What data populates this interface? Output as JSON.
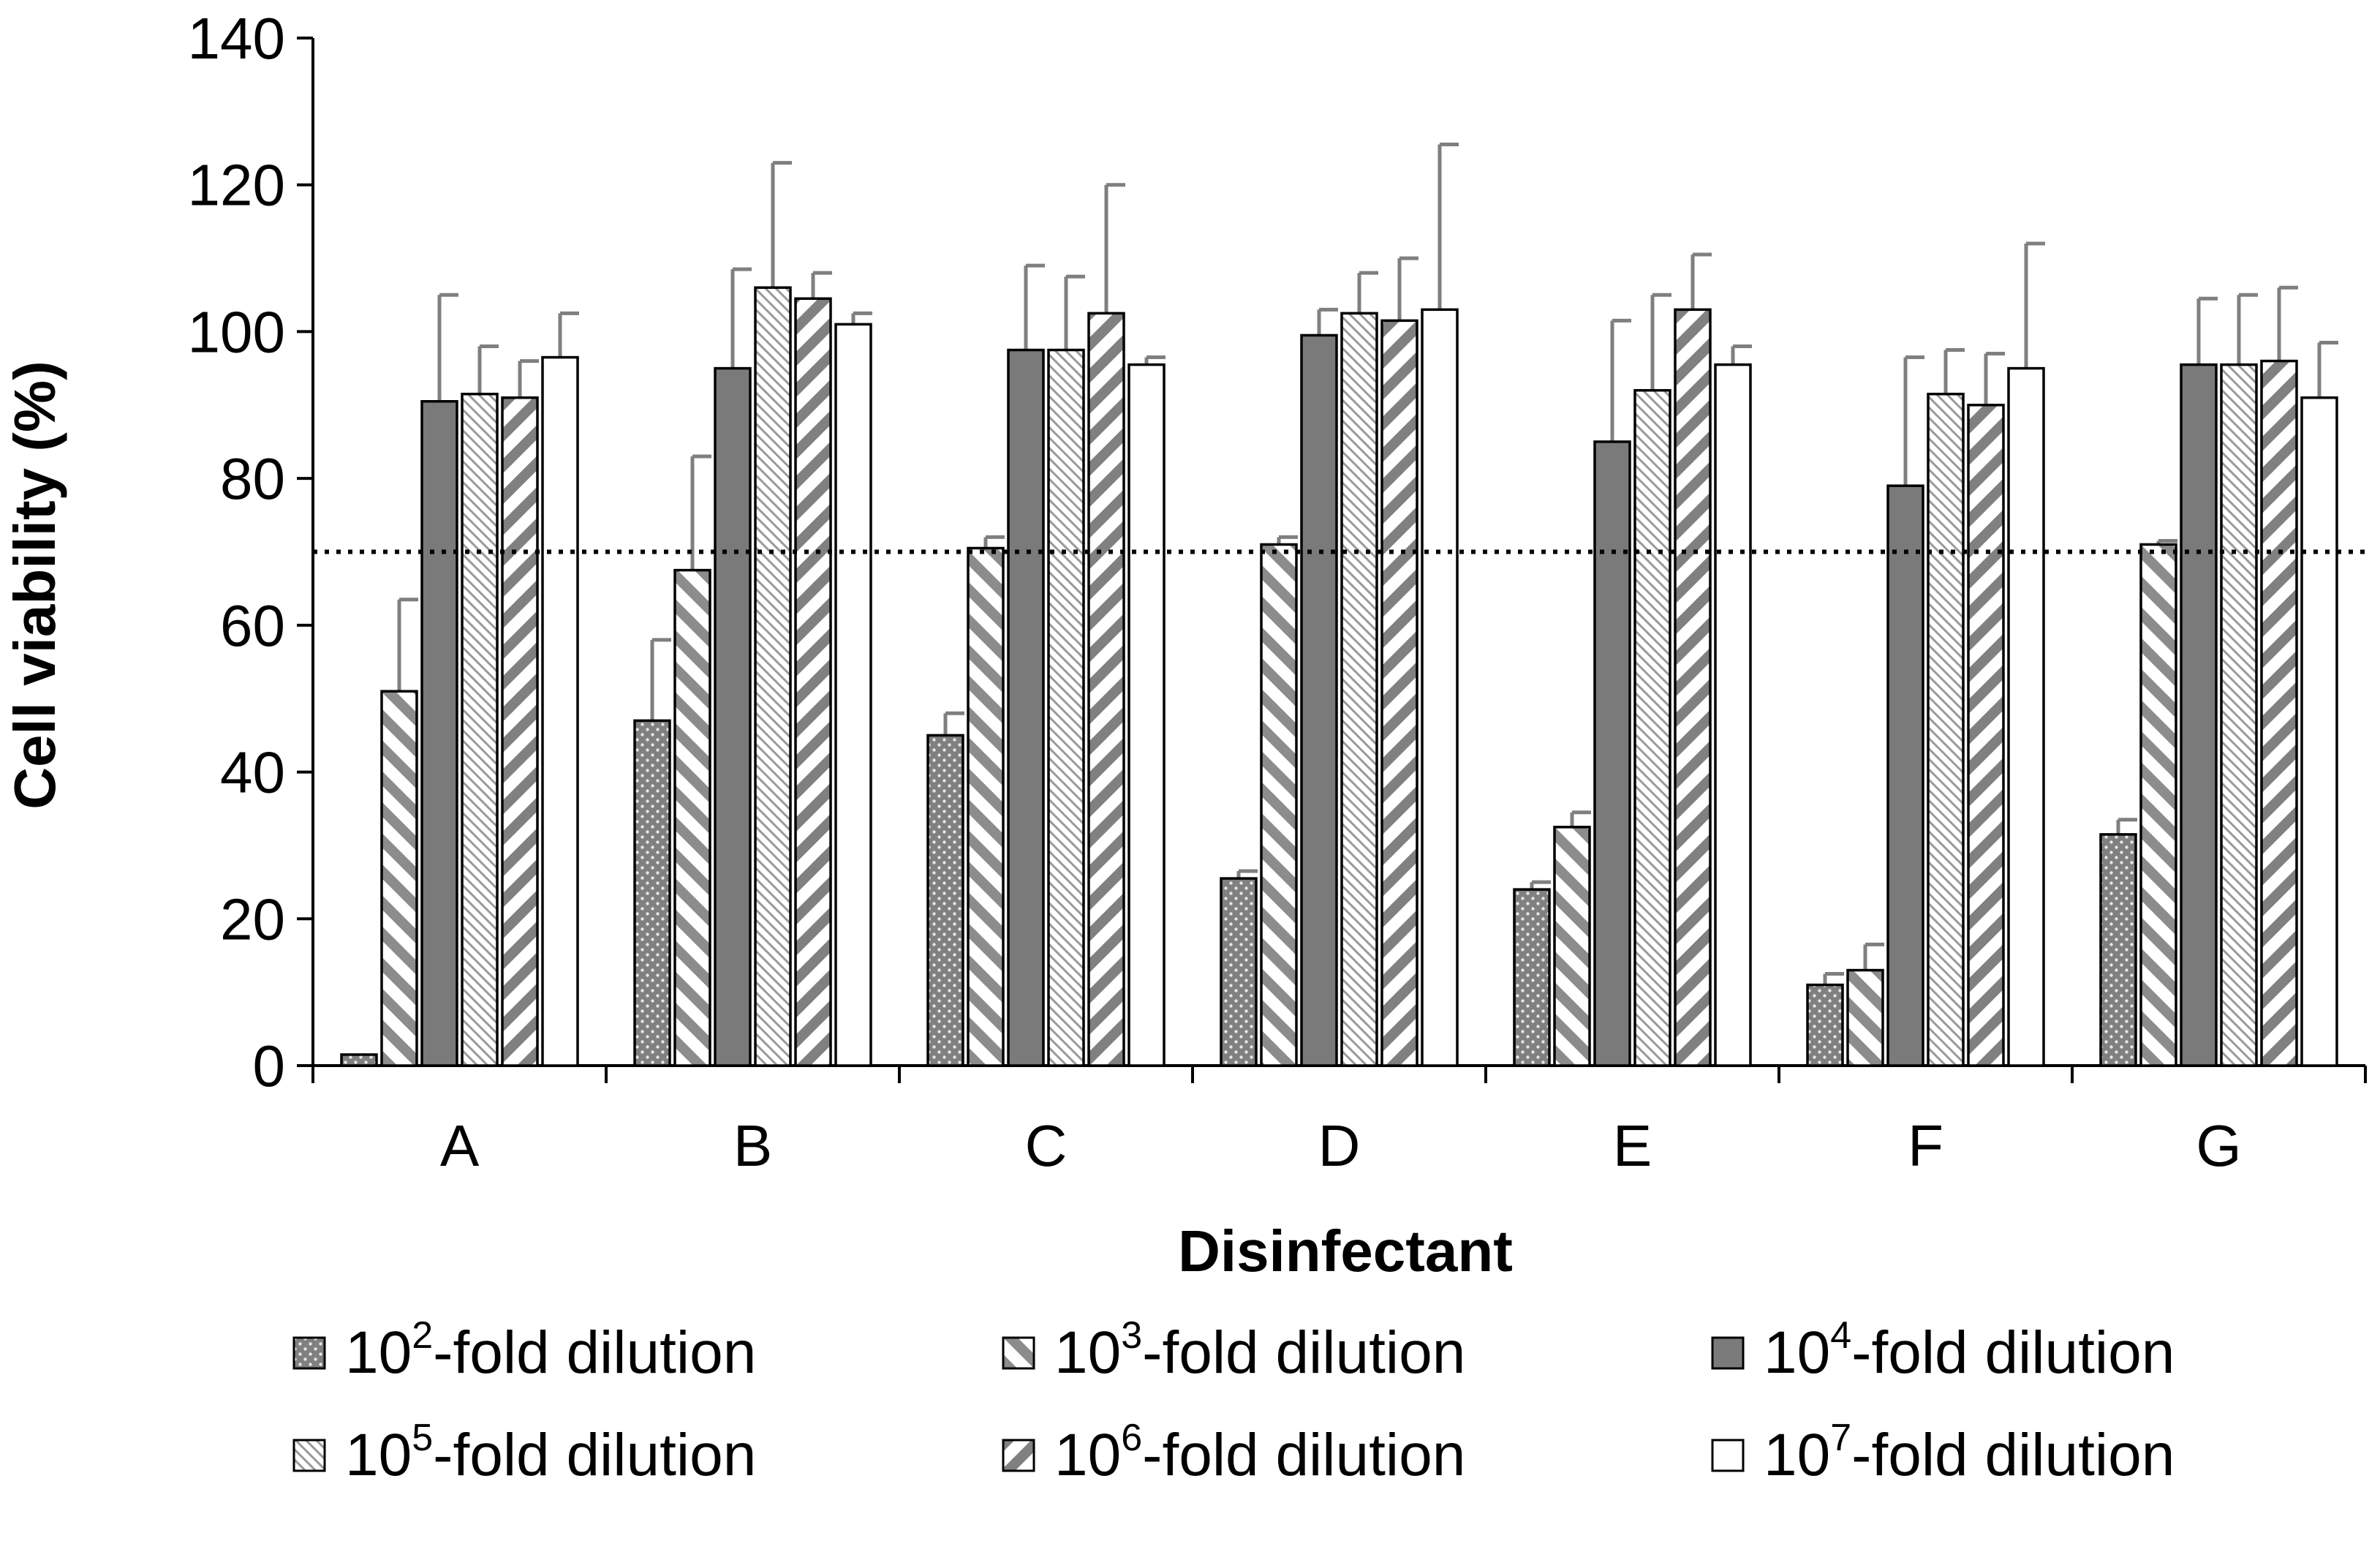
{
  "chart_data": {
    "type": "bar",
    "title": "",
    "xlabel": "Disinfectant",
    "ylabel": "Cell viability (%)",
    "ylim": [
      0,
      140
    ],
    "yticks": [
      0,
      20,
      40,
      60,
      80,
      100,
      120,
      140
    ],
    "reference_line": 70,
    "categories": [
      "A",
      "B",
      "C",
      "D",
      "E",
      "F",
      "G"
    ],
    "series": [
      {
        "name": "10²-fold dilution",
        "base": "10",
        "exp": "2",
        "suffix": "-fold dilution",
        "pattern": "dots",
        "values": [
          1.5,
          47,
          45,
          25.5,
          24,
          11,
          31.5
        ],
        "errors": [
          0,
          11,
          3,
          1,
          1,
          1.5,
          2
        ]
      },
      {
        "name": "10³-fold dilution",
        "base": "10",
        "exp": "3",
        "suffix": "-fold dilution",
        "pattern": "diag-right",
        "values": [
          51,
          67.5,
          70.5,
          71,
          32.5,
          13,
          71
        ],
        "errors": [
          12.5,
          15.5,
          1.5,
          1,
          2,
          3.5,
          0.5
        ]
      },
      {
        "name": "10⁴-fold dilution",
        "base": "10",
        "exp": "4",
        "suffix": "-fold dilution",
        "pattern": "solid",
        "values": [
          90.5,
          95,
          97.5,
          99.5,
          85,
          79,
          95.5
        ],
        "errors": [
          14.5,
          13.5,
          11.5,
          3.5,
          16.5,
          17.5,
          9
        ]
      },
      {
        "name": "10⁵-fold dilution",
        "base": "10",
        "exp": "5",
        "suffix": "-fold dilution",
        "pattern": "fine-diag",
        "values": [
          91.5,
          106,
          97.5,
          102.5,
          92,
          91.5,
          95.5
        ],
        "errors": [
          6.5,
          17,
          10,
          5.5,
          13,
          6,
          9.5
        ]
      },
      {
        "name": "10⁶-fold dilution",
        "base": "10",
        "exp": "6",
        "suffix": "-fold dilution",
        "pattern": "diag-left",
        "values": [
          91,
          104.5,
          102.5,
          101.5,
          103,
          90,
          96
        ],
        "errors": [
          5,
          3.5,
          17.5,
          8.5,
          7.5,
          7,
          10
        ]
      },
      {
        "name": "10⁷-fold dilution",
        "base": "10",
        "exp": "7",
        "suffix": "-fold dilution",
        "pattern": "white",
        "values": [
          96.5,
          101,
          95.5,
          103,
          95.5,
          95,
          91
        ],
        "errors": [
          6,
          1.5,
          1,
          22.5,
          2.5,
          17,
          7.5
        ]
      }
    ],
    "legend_position": "bottom"
  }
}
